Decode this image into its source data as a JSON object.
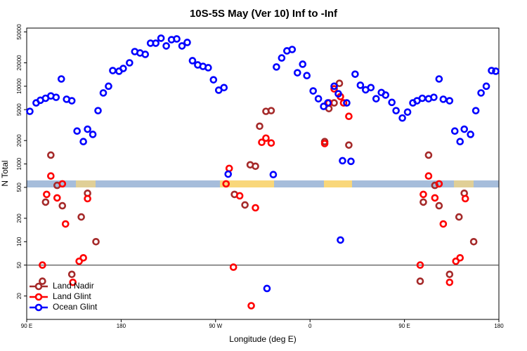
{
  "chart_data": {
    "type": "scatter",
    "title": "10S-5S May (Ver 10)   Inf to -Inf",
    "xlabel": "Longitude (deg E)",
    "ylabel": "N Total",
    "xlim": [
      90,
      540
    ],
    "xticks": [
      {
        "value": 90,
        "label": "90 E"
      },
      180,
      {
        "value": 270,
        "label": "90 W"
      },
      {
        "value": 360,
        "label": "0"
      },
      {
        "value": 450,
        "label": "90 E"
      },
      {
        "value": 540,
        "label": "180"
      }
    ],
    "ylim": [
      10,
      56000
    ],
    "yticks": [
      20,
      50,
      100,
      200,
      500,
      1000,
      2000,
      5000,
      10000,
      20000,
      50000
    ],
    "log_y": true,
    "reference_line": 50,
    "legend": "lower-left",
    "series": [
      {
        "name": "Land Nadir",
        "color": "#a52a2a",
        "x": [
          113,
          119,
          108,
          124,
          142,
          148,
          133,
          105,
          156,
          288,
          298,
          303,
          308,
          312,
          318,
          323,
          374,
          378,
          383,
          388,
          397,
          473,
          479,
          468,
          483,
          502,
          507,
          493,
          465,
          516
        ],
        "values": [
          1300,
          530,
          323,
          290,
          208,
          420,
          38,
          31,
          100,
          406,
          297,
          975,
          935,
          3060,
          4750,
          4850,
          1940,
          5160,
          6100,
          10900,
          1750,
          1300,
          530,
          323,
          290,
          208,
          420,
          38,
          31,
          100
        ]
      },
      {
        "name": "Land Glint",
        "color": "#ff0000",
        "x": [
          105,
          109,
          113,
          119,
          124,
          127,
          140,
          144,
          148,
          134,
          280,
          283,
          287,
          293,
          304,
          308,
          314,
          318,
          323,
          374,
          378,
          383,
          389,
          392,
          397,
          465,
          468,
          473,
          479,
          483,
          487,
          499,
          503,
          508,
          493
        ],
        "values": [
          50,
          406,
          700,
          366,
          555,
          169,
          56,
          62,
          358,
          30,
          555,
          877,
          47,
          389,
          15,
          273,
          1900,
          2150,
          1860,
          1830,
          6100,
          9250,
          7350,
          6100,
          4100,
          50,
          406,
          700,
          366,
          555,
          169,
          56,
          62,
          358,
          30
        ]
      },
      {
        "name": "Ocean Glint",
        "color": "#0000ff",
        "x": [
          93,
          99,
          103,
          108,
          113,
          118,
          123,
          128,
          133,
          138,
          144,
          148,
          153,
          158,
          163,
          168,
          172,
          178,
          182,
          188,
          193,
          198,
          203,
          208,
          213,
          218,
          223,
          228,
          233,
          238,
          243,
          248,
          253,
          258,
          263,
          268,
          273,
          278,
          282,
          319,
          325,
          328,
          333,
          338,
          343,
          348,
          353,
          357,
          363,
          368,
          373,
          377,
          383,
          387,
          391,
          395,
          399,
          403,
          408,
          413,
          418,
          423,
          428,
          432,
          438,
          442,
          448,
          389,
          453,
          458,
          462,
          467,
          473,
          478,
          483,
          487,
          493,
          498,
          503,
          507,
          513,
          518,
          523,
          528,
          533,
          537
        ],
        "values": [
          4750,
          6100,
          6600,
          7000,
          7500,
          7200,
          12400,
          6800,
          6500,
          2650,
          1940,
          2800,
          2400,
          4850,
          8200,
          10000,
          15900,
          15600,
          16900,
          20000,
          27900,
          26800,
          25700,
          35800,
          35800,
          41500,
          33000,
          39700,
          40600,
          33000,
          36600,
          21300,
          18800,
          18000,
          17300,
          12100,
          8900,
          9600,
          740,
          25,
          730,
          17700,
          23100,
          28500,
          29700,
          14900,
          19200,
          13700,
          8700,
          6900,
          5500,
          6100,
          10000,
          8000,
          1100,
          6100,
          1080,
          14300,
          10300,
          9000,
          9600,
          6900,
          8300,
          7700,
          6200,
          4850,
          3900,
          105,
          4650,
          6100,
          6500,
          7000,
          6900,
          7200,
          12400,
          6800,
          6500,
          2650,
          1940,
          2800,
          2400,
          4850,
          8200,
          10000,
          15900,
          15600
        ]
      }
    ]
  }
}
